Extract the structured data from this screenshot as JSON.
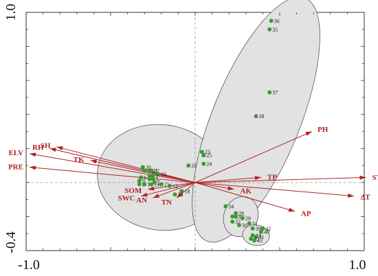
{
  "chart_data": {
    "type": "scatter",
    "subtype": "rda-biplot",
    "title": "",
    "xlabel": "",
    "ylabel": "",
    "xlim": [
      -1.0,
      1.0
    ],
    "ylim": [
      -0.4,
      1.0
    ],
    "x_ticks": [
      "-1.0",
      "1.0"
    ],
    "y_ticks": [
      "1.0",
      "-0.4"
    ],
    "grid": false,
    "colors": {
      "arrow": "#b22222",
      "point": "#3a9a32",
      "ellipse_fill": "#e2e2e2",
      "ellipse_stroke": "#555555",
      "zero_line": "#999999"
    },
    "vectors": [
      {
        "name": "PH",
        "x": 0.69,
        "y": 0.3
      },
      {
        "name": "RH",
        "x": -0.86,
        "y": 0.2
      },
      {
        "name": "SH",
        "x": -0.82,
        "y": 0.21
      },
      {
        "name": "ELV",
        "x": -0.98,
        "y": 0.17
      },
      {
        "name": "TK",
        "x": -0.62,
        "y": 0.13
      },
      {
        "name": "PRE",
        "x": -0.98,
        "y": 0.09
      },
      {
        "name": "ST",
        "x": 1.01,
        "y": 0.03
      },
      {
        "name": "TP",
        "x": 0.39,
        "y": 0.03
      },
      {
        "name": "AT",
        "x": 0.94,
        "y": -0.08
      },
      {
        "name": "AK",
        "x": 0.23,
        "y": -0.04
      },
      {
        "name": "AP",
        "x": 0.59,
        "y": -0.17
      },
      {
        "name": "SOM",
        "x": -0.28,
        "y": -0.04
      },
      {
        "name": "SWC",
        "x": -0.32,
        "y": -0.08
      },
      {
        "name": "AN",
        "x": -0.25,
        "y": -0.09
      },
      {
        "name": "TN",
        "x": -0.11,
        "y": -0.09
      }
    ],
    "points": [
      {
        "label": "36",
        "x": 0.45,
        "y": 0.95
      },
      {
        "label": "35",
        "x": 0.44,
        "y": 0.9
      },
      {
        "label": "37",
        "x": 0.44,
        "y": 0.53
      },
      {
        "label": "38",
        "x": 0.36,
        "y": 0.39
      },
      {
        "label": "23",
        "x": 0.04,
        "y": 0.18
      },
      {
        "label": "25",
        "x": 0.05,
        "y": 0.16
      },
      {
        "label": "26",
        "x": -0.04,
        "y": 0.1
      },
      {
        "label": "24",
        "x": 0.05,
        "y": 0.11
      },
      {
        "label": "20",
        "x": -0.31,
        "y": 0.09
      },
      {
        "label": "19",
        "x": -0.3,
        "y": 0.07
      },
      {
        "label": "21",
        "x": -0.27,
        "y": 0.07
      },
      {
        "label": "22",
        "x": -0.26,
        "y": 0.07
      },
      {
        "label": "16",
        "x": -0.22,
        "y": 0.05
      },
      {
        "label": "1",
        "x": -0.27,
        "y": 0.04
      },
      {
        "label": "2",
        "x": -0.25,
        "y": 0.04
      },
      {
        "label": "3",
        "x": -0.27,
        "y": 0.02
      },
      {
        "label": "5",
        "x": -0.25,
        "y": 0.02
      },
      {
        "label": "9",
        "x": -0.33,
        "y": 0.01
      },
      {
        "label": "6",
        "x": -0.32,
        "y": 0.03
      },
      {
        "label": "8",
        "x": -0.33,
        "y": -0.01
      },
      {
        "label": "10",
        "x": -0.3,
        "y": -0.01
      },
      {
        "label": "14",
        "x": -0.26,
        "y": -0.01
      },
      {
        "label": "7",
        "x": -0.24,
        "y": 0.0
      },
      {
        "label": "11",
        "x": -0.2,
        "y": -0.01
      },
      {
        "label": "12",
        "x": -0.15,
        "y": -0.02
      },
      {
        "label": "18",
        "x": -0.08,
        "y": -0.05
      },
      {
        "label": "13",
        "x": -0.12,
        "y": -0.07
      },
      {
        "label": "34",
        "x": 0.18,
        "y": -0.14
      },
      {
        "label": "28",
        "x": 0.24,
        "y": -0.18
      },
      {
        "label": "27",
        "x": 0.22,
        "y": -0.2
      },
      {
        "label": "33",
        "x": 0.24,
        "y": -0.2
      },
      {
        "label": "29",
        "x": 0.28,
        "y": -0.21
      },
      {
        "label": "32",
        "x": 0.22,
        "y": -0.23
      },
      {
        "label": "31",
        "x": 0.32,
        "y": -0.24
      },
      {
        "label": "30",
        "x": 0.26,
        "y": -0.25
      },
      {
        "label": "39",
        "x": 0.34,
        "y": -0.27
      },
      {
        "label": "42",
        "x": 0.4,
        "y": -0.27
      },
      {
        "label": "40",
        "x": 0.39,
        "y": -0.29
      },
      {
        "label": "44",
        "x": 0.34,
        "y": -0.31
      },
      {
        "label": "41",
        "x": 0.36,
        "y": -0.32
      },
      {
        "label": "45",
        "x": 0.33,
        "y": -0.33
      },
      {
        "label": "43",
        "x": 0.35,
        "y": -0.34
      }
    ],
    "groups": [
      {
        "name": "",
        "cx": -0.2,
        "cy": 0.03,
        "rx": 0.38,
        "ry": 0.31,
        "angle": 8
      },
      {
        "name": "",
        "cx": 0.36,
        "cy": 0.37,
        "rx": 0.26,
        "ry": 0.77,
        "angle": 22
      },
      {
        "name": "",
        "cx": 0.27,
        "cy": -0.2,
        "rx": 0.1,
        "ry": 0.12,
        "angle": 20
      },
      {
        "name": "",
        "cx": 0.36,
        "cy": -0.31,
        "rx": 0.08,
        "ry": 0.06,
        "angle": 10
      }
    ]
  }
}
